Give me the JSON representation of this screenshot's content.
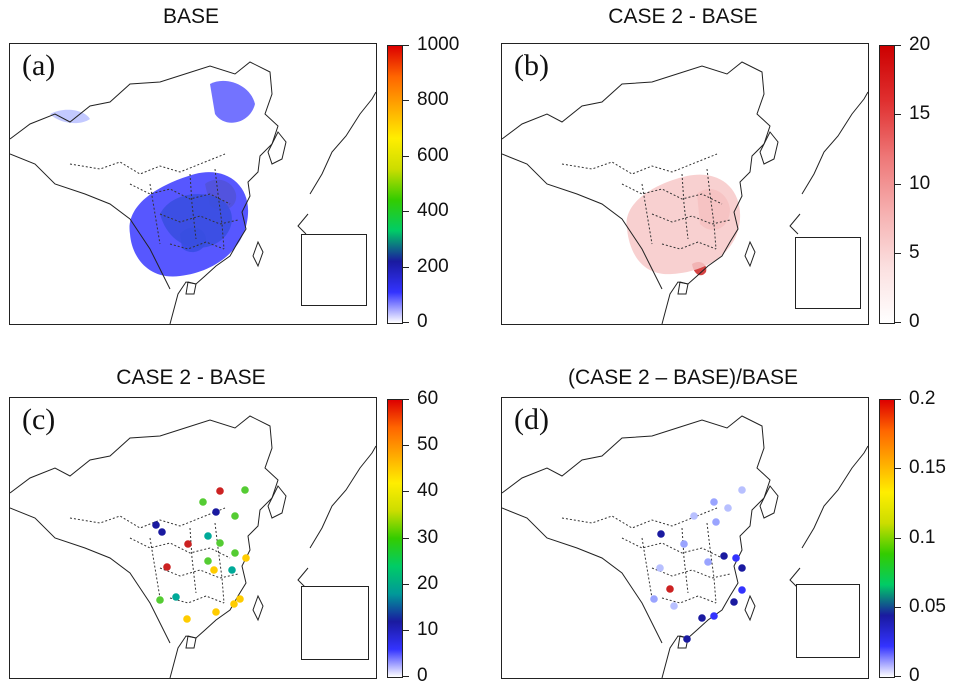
{
  "panels": [
    {
      "id": "a",
      "title": "BASE",
      "label": "(a)",
      "colorbar": {
        "scheme": "rainbow",
        "colors": [
          "#ffffff",
          "#3333ff",
          "#1a1aa0",
          "#00cc66",
          "#33cc00",
          "#ccdd00",
          "#ffee00",
          "#ffaa00",
          "#ff6600",
          "#dd0000"
        ],
        "ticks": [
          "1000",
          "800",
          "600",
          "400",
          "200",
          "0"
        ]
      },
      "field": "concentration"
    },
    {
      "id": "b",
      "title": "CASE 2 - BASE",
      "label": "(b)",
      "colorbar": {
        "scheme": "reds",
        "colors": [
          "#ffffff",
          "#fbe0e0",
          "#f6b0b0",
          "#ee7777",
          "#e03030",
          "#cc0000"
        ],
        "ticks": [
          "20",
          "15",
          "10",
          "5",
          "0"
        ]
      },
      "field": "difference"
    },
    {
      "id": "c",
      "title": "CASE 2 - BASE",
      "label": "(c)",
      "colorbar": {
        "scheme": "rainbow",
        "colors": [
          "#ffffff",
          "#3333ff",
          "#1a1aa0",
          "#009999",
          "#00cc66",
          "#33cc00",
          "#ccdd00",
          "#ffee00",
          "#ffaa00",
          "#ff6600",
          "#dd0000"
        ],
        "ticks": [
          "60",
          "50",
          "40",
          "30",
          "20",
          "10",
          "0"
        ]
      },
      "field": "sites"
    },
    {
      "id": "d",
      "title": "(CASE 2 – BASE)/BASE",
      "label": "(d)",
      "colorbar": {
        "scheme": "rainbow",
        "colors": [
          "#ffffff",
          "#3333ff",
          "#1a1aa0",
          "#00cc66",
          "#33cc00",
          "#ccdd00",
          "#ffee00",
          "#ffaa00",
          "#ff6600",
          "#dd0000"
        ],
        "ticks": [
          "0.2",
          "0.15",
          "0.1",
          "0.05",
          "0"
        ]
      },
      "field": "sites"
    }
  ],
  "colors": {
    "border": "#222222",
    "province_border": "#333333"
  }
}
